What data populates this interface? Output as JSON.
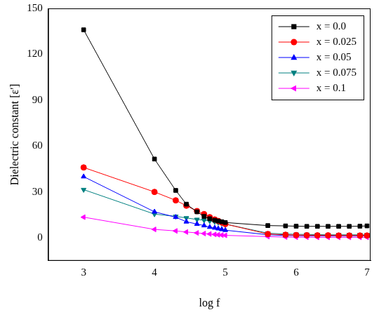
{
  "chart_data": {
    "type": "line",
    "x_label": "log f",
    "y_label": "Dielectric constant [ε']",
    "x": [
      3,
      4,
      4.3,
      4.45,
      4.6,
      4.7,
      4.78,
      4.85,
      4.9,
      4.95,
      5,
      5.6,
      5.85,
      6,
      6.15,
      6.3,
      6.45,
      6.6,
      6.75,
      6.9,
      7
    ],
    "series": [
      {
        "name": "x = 0.0",
        "color": "#000000",
        "marker": "square",
        "values": [
          136,
          51.5,
          31,
          22,
          17,
          14,
          12.5,
          11.5,
          11,
          10.5,
          10,
          8,
          7.8,
          7.6,
          7.5,
          7.5,
          7.5,
          7.5,
          7.5,
          7.6,
          7.8
        ]
      },
      {
        "name": "x = 0.025",
        "color": "#ff0000",
        "marker": "circle",
        "values": [
          46,
          30,
          24.5,
          21,
          17.5,
          15.5,
          13.5,
          12,
          11,
          10,
          9,
          2.5,
          2,
          1.8,
          1.7,
          1.6,
          1.6,
          1.5,
          1.5,
          1.5,
          1.5
        ]
      },
      {
        "name": "x = 0.05",
        "color": "#0000ff",
        "marker": "triangle-up",
        "values": [
          40,
          17,
          13.5,
          10.5,
          9,
          8,
          7,
          6.5,
          6,
          5.5,
          5,
          2,
          1.5,
          1.4,
          1.3,
          1.3,
          1.2,
          1.2,
          1.2,
          1.2,
          1.2
        ]
      },
      {
        "name": "x = 0.075",
        "color": "#008080",
        "marker": "triangle-down",
        "values": [
          31.5,
          15.5,
          14,
          13,
          12,
          11.5,
          11,
          10.5,
          10,
          9.5,
          9,
          3,
          2.5,
          2.3,
          2.2,
          2.1,
          2,
          2,
          2,
          2,
          2
        ]
      },
      {
        "name": "x = 0.1",
        "color": "#ff00ff",
        "marker": "triangle-left",
        "values": [
          13.5,
          5.5,
          4.5,
          3.8,
          3.2,
          2.8,
          2.5,
          2.2,
          2,
          1.8,
          1.6,
          0.8,
          0.5,
          0.4,
          0.4,
          0.3,
          0.3,
          0.3,
          0.3,
          0.3,
          0.3
        ]
      }
    ],
    "xlim": [
      2.5,
      7.05
    ],
    "xticks": [
      3,
      4,
      5,
      6,
      7
    ],
    "ylim": [
      -15,
      150
    ],
    "yticks": [
      0,
      30,
      60,
      90,
      120,
      150
    ],
    "grid": false,
    "legend": "top-right"
  }
}
